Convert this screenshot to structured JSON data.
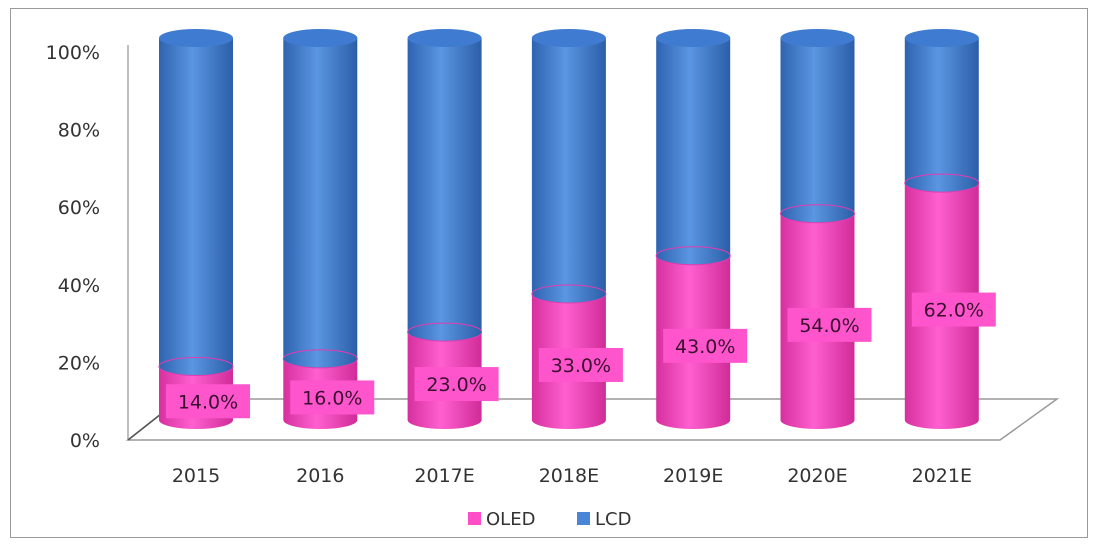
{
  "chart_data": {
    "type": "bar",
    "stacked": true,
    "percent_stacked": true,
    "style": "3d-cylinder",
    "categories": [
      "2015",
      "2016",
      "2017E",
      "2018E",
      "2019E",
      "2020E",
      "2021E"
    ],
    "series": [
      {
        "name": "OLED",
        "values": [
          14.0,
          16.0,
          23.0,
          33.0,
          43.0,
          54.0,
          62.0
        ],
        "color": "#ff4fc8",
        "labels": [
          "14.0%",
          "16.0%",
          "23.0%",
          "33.0%",
          "43.0%",
          "54.0%",
          "62.0%"
        ]
      },
      {
        "name": "LCD",
        "values": [
          86.0,
          84.0,
          77.0,
          67.0,
          57.0,
          46.0,
          38.0
        ],
        "color": "#4a86d8"
      }
    ],
    "yticks": [
      "0%",
      "20%",
      "40%",
      "60%",
      "80%",
      "100%"
    ],
    "ylim": [
      0,
      100
    ],
    "title": "",
    "xlabel": "",
    "ylabel": "",
    "legend": "bottom",
    "grid": false
  }
}
